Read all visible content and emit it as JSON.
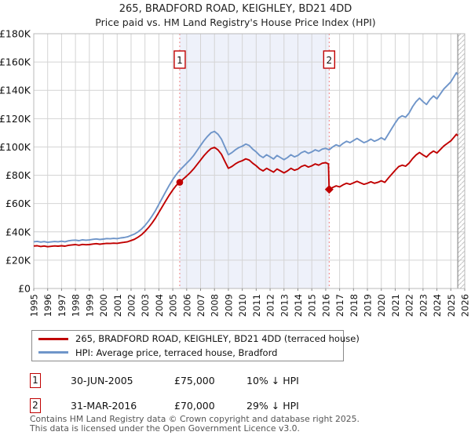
{
  "title": "265, BRADFORD ROAD, KEIGHLEY, BD21 4DD",
  "subtitle": "Price paid vs. HM Land Registry's House Price Index (HPI)",
  "colors": {
    "price_paid_line": "#c00000",
    "hpi_line": "#6f95c9",
    "between_sales_shade": "#eef1fa",
    "sale_vline": "#f08080",
    "grid": "#d4d4d4",
    "plot_border": "#b8b8b8",
    "hatch": "#c4c4c4",
    "now_line": "#909090",
    "marker_box_border": "#c00000",
    "footer_text": "#555555"
  },
  "chart_data": {
    "type": "line",
    "title": "265, BRADFORD ROAD, KEIGHLEY, BD21 4DD",
    "subtitle": "Price paid vs. HM Land Registry's House Price Index (HPI)",
    "xlabel": "",
    "ylabel": "",
    "xlim": [
      1995,
      2026
    ],
    "ylim": [
      0,
      180000
    ],
    "grid": true,
    "legend_position": "below",
    "y_ticks": [
      {
        "value": 0,
        "label": "£0"
      },
      {
        "value": 20,
        "label": "£20K"
      },
      {
        "value": 40,
        "label": "£40K"
      },
      {
        "value": 60,
        "label": "£60K"
      },
      {
        "value": 80,
        "label": "£80K"
      },
      {
        "value": 100,
        "label": "£100K"
      },
      {
        "value": 120,
        "label": "£120K"
      },
      {
        "value": 140,
        "label": "£140K"
      },
      {
        "value": 160,
        "label": "£160K"
      },
      {
        "value": 180,
        "label": "£180K"
      }
    ],
    "x_ticks": [
      1995,
      1996,
      1997,
      1998,
      1999,
      2000,
      2001,
      2002,
      2003,
      2004,
      2005,
      2006,
      2007,
      2008,
      2009,
      2010,
      2011,
      2012,
      2013,
      2014,
      2015,
      2016,
      2017,
      2018,
      2019,
      2020,
      2021,
      2022,
      2023,
      2024,
      2025,
      2026
    ],
    "shaded_region": {
      "from": 2005.5,
      "to": 2016.25
    },
    "future_hatch_region": {
      "from": 2025.5,
      "to": 2026
    },
    "series": [
      {
        "name": "265, BRADFORD ROAD, KEIGHLEY, BD21 4DD (terraced house)",
        "color": "#c00000",
        "unit": "GBP_thousand",
        "points": [
          [
            1995.0,
            30.0
          ],
          [
            1995.25,
            30.2
          ],
          [
            1995.5,
            29.7
          ],
          [
            1995.75,
            30.0
          ],
          [
            1996.0,
            29.5
          ],
          [
            1996.25,
            29.8
          ],
          [
            1996.5,
            30.1
          ],
          [
            1996.75,
            29.9
          ],
          [
            1997.0,
            30.2
          ],
          [
            1997.25,
            29.9
          ],
          [
            1997.5,
            30.5
          ],
          [
            1997.75,
            30.8
          ],
          [
            1998.0,
            31.0
          ],
          [
            1998.25,
            30.6
          ],
          [
            1998.5,
            31.1
          ],
          [
            1998.75,
            30.9
          ],
          [
            1999.0,
            31.0
          ],
          [
            1999.25,
            31.4
          ],
          [
            1999.5,
            31.7
          ],
          [
            1999.75,
            31.3
          ],
          [
            2000.0,
            31.6
          ],
          [
            2000.25,
            31.9
          ],
          [
            2000.5,
            31.8
          ],
          [
            2000.75,
            32.0
          ],
          [
            2001.0,
            31.9
          ],
          [
            2001.25,
            32.3
          ],
          [
            2001.5,
            32.6
          ],
          [
            2001.75,
            33.0
          ],
          [
            2002.0,
            33.9
          ],
          [
            2002.25,
            34.8
          ],
          [
            2002.5,
            36.2
          ],
          [
            2002.75,
            38.0
          ],
          [
            2003.0,
            40.3
          ],
          [
            2003.25,
            43.0
          ],
          [
            2003.5,
            46.1
          ],
          [
            2003.75,
            49.7
          ],
          [
            2004.0,
            53.8
          ],
          [
            2004.25,
            57.9
          ],
          [
            2004.5,
            62.0
          ],
          [
            2004.75,
            66.0
          ],
          [
            2005.0,
            69.6
          ],
          [
            2005.25,
            72.8
          ],
          [
            2005.5,
            75.0
          ],
          [
            2005.75,
            77.3
          ],
          [
            2006.0,
            79.5
          ],
          [
            2006.25,
            81.8
          ],
          [
            2006.5,
            84.5
          ],
          [
            2006.75,
            87.6
          ],
          [
            2007.0,
            90.7
          ],
          [
            2007.25,
            93.9
          ],
          [
            2007.5,
            96.6
          ],
          [
            2007.75,
            98.8
          ],
          [
            2008.0,
            99.7
          ],
          [
            2008.25,
            97.9
          ],
          [
            2008.5,
            94.8
          ],
          [
            2008.75,
            89.8
          ],
          [
            2009.0,
            84.9
          ],
          [
            2009.25,
            86.2
          ],
          [
            2009.5,
            88.0
          ],
          [
            2009.75,
            89.4
          ],
          [
            2010.0,
            90.3
          ],
          [
            2010.25,
            91.6
          ],
          [
            2010.5,
            90.7
          ],
          [
            2010.75,
            88.5
          ],
          [
            2011.0,
            86.7
          ],
          [
            2011.25,
            84.4
          ],
          [
            2011.5,
            83.1
          ],
          [
            2011.75,
            84.9
          ],
          [
            2012.0,
            83.5
          ],
          [
            2012.25,
            82.2
          ],
          [
            2012.5,
            84.4
          ],
          [
            2012.75,
            83.1
          ],
          [
            2013.0,
            81.7
          ],
          [
            2013.25,
            83.1
          ],
          [
            2013.5,
            84.9
          ],
          [
            2013.75,
            83.5
          ],
          [
            2014.0,
            84.4
          ],
          [
            2014.25,
            86.2
          ],
          [
            2014.5,
            87.1
          ],
          [
            2014.75,
            85.8
          ],
          [
            2015.0,
            86.7
          ],
          [
            2015.25,
            88.0
          ],
          [
            2015.5,
            87.1
          ],
          [
            2015.75,
            88.5
          ],
          [
            2016.0,
            88.9
          ],
          [
            2016.2,
            88.0
          ],
          [
            2016.25,
            70.0
          ],
          [
            2016.5,
            71.4
          ],
          [
            2016.75,
            72.5
          ],
          [
            2017.0,
            71.8
          ],
          [
            2017.25,
            73.2
          ],
          [
            2017.5,
            74.3
          ],
          [
            2017.75,
            73.6
          ],
          [
            2018.0,
            74.6
          ],
          [
            2018.25,
            75.7
          ],
          [
            2018.5,
            74.6
          ],
          [
            2018.75,
            73.6
          ],
          [
            2019.0,
            74.3
          ],
          [
            2019.25,
            75.4
          ],
          [
            2019.5,
            74.3
          ],
          [
            2019.75,
            75.0
          ],
          [
            2020.0,
            76.1
          ],
          [
            2020.25,
            75.0
          ],
          [
            2020.5,
            77.9
          ],
          [
            2020.75,
            80.7
          ],
          [
            2021.0,
            83.6
          ],
          [
            2021.25,
            86.1
          ],
          [
            2021.5,
            87.1
          ],
          [
            2021.75,
            86.4
          ],
          [
            2022.0,
            88.6
          ],
          [
            2022.25,
            91.8
          ],
          [
            2022.5,
            94.3
          ],
          [
            2022.75,
            96.1
          ],
          [
            2023.0,
            94.3
          ],
          [
            2023.25,
            92.9
          ],
          [
            2023.5,
            95.4
          ],
          [
            2023.75,
            97.1
          ],
          [
            2024.0,
            95.7
          ],
          [
            2024.25,
            98.2
          ],
          [
            2024.5,
            100.7
          ],
          [
            2024.75,
            102.5
          ],
          [
            2025.0,
            104.3
          ],
          [
            2025.25,
            107.1
          ],
          [
            2025.4,
            109.0
          ],
          [
            2025.5,
            107.9
          ]
        ]
      },
      {
        "name": "HPI: Average price, terraced house, Bradford",
        "color": "#6f95c9",
        "unit": "GBP_thousand",
        "points": [
          [
            1995.0,
            33.0
          ],
          [
            1995.25,
            33.3
          ],
          [
            1995.5,
            32.8
          ],
          [
            1995.75,
            33.1
          ],
          [
            1996.0,
            32.6
          ],
          [
            1996.25,
            32.9
          ],
          [
            1996.5,
            33.2
          ],
          [
            1996.75,
            33.0
          ],
          [
            1997.0,
            33.4
          ],
          [
            1997.25,
            33.0
          ],
          [
            1997.5,
            33.7
          ],
          [
            1997.75,
            34.0
          ],
          [
            1998.0,
            34.2
          ],
          [
            1998.25,
            33.8
          ],
          [
            1998.5,
            34.4
          ],
          [
            1998.75,
            34.1
          ],
          [
            1999.0,
            34.3
          ],
          [
            1999.25,
            34.7
          ],
          [
            1999.5,
            35.0
          ],
          [
            1999.75,
            34.6
          ],
          [
            2000.0,
            34.9
          ],
          [
            2000.25,
            35.3
          ],
          [
            2000.5,
            35.1
          ],
          [
            2000.75,
            35.4
          ],
          [
            2001.0,
            35.2
          ],
          [
            2001.25,
            35.7
          ],
          [
            2001.5,
            36.0
          ],
          [
            2001.75,
            36.5
          ],
          [
            2002.0,
            37.5
          ],
          [
            2002.25,
            38.5
          ],
          [
            2002.5,
            40.0
          ],
          [
            2002.75,
            42.0
          ],
          [
            2003.0,
            44.5
          ],
          [
            2003.25,
            47.5
          ],
          [
            2003.5,
            51.0
          ],
          [
            2003.75,
            55.0
          ],
          [
            2004.0,
            59.5
          ],
          [
            2004.25,
            64.0
          ],
          [
            2004.5,
            68.5
          ],
          [
            2004.75,
            73.0
          ],
          [
            2005.0,
            77.0
          ],
          [
            2005.25,
            80.5
          ],
          [
            2005.5,
            83.5
          ],
          [
            2005.75,
            86.0
          ],
          [
            2006.0,
            88.5
          ],
          [
            2006.25,
            91.0
          ],
          [
            2006.5,
            94.0
          ],
          [
            2006.75,
            97.5
          ],
          [
            2007.0,
            101.0
          ],
          [
            2007.25,
            104.5
          ],
          [
            2007.5,
            107.5
          ],
          [
            2007.75,
            110.0
          ],
          [
            2008.0,
            111.0
          ],
          [
            2008.25,
            109.0
          ],
          [
            2008.5,
            105.5
          ],
          [
            2008.75,
            100.0
          ],
          [
            2009.0,
            94.5
          ],
          [
            2009.25,
            96.0
          ],
          [
            2009.5,
            98.0
          ],
          [
            2009.75,
            99.5
          ],
          [
            2010.0,
            100.5
          ],
          [
            2010.25,
            102.0
          ],
          [
            2010.5,
            101.0
          ],
          [
            2010.75,
            98.5
          ],
          [
            2011.0,
            96.5
          ],
          [
            2011.25,
            94.0
          ],
          [
            2011.5,
            92.5
          ],
          [
            2011.75,
            94.5
          ],
          [
            2012.0,
            93.0
          ],
          [
            2012.25,
            91.5
          ],
          [
            2012.5,
            94.0
          ],
          [
            2012.75,
            92.5
          ],
          [
            2013.0,
            91.0
          ],
          [
            2013.25,
            92.5
          ],
          [
            2013.5,
            94.5
          ],
          [
            2013.75,
            93.0
          ],
          [
            2014.0,
            94.0
          ],
          [
            2014.25,
            96.0
          ],
          [
            2014.5,
            97.0
          ],
          [
            2014.75,
            95.5
          ],
          [
            2015.0,
            96.5
          ],
          [
            2015.25,
            98.0
          ],
          [
            2015.5,
            97.0
          ],
          [
            2015.75,
            98.5
          ],
          [
            2016.0,
            99.0
          ],
          [
            2016.25,
            98.0
          ],
          [
            2016.5,
            100.0
          ],
          [
            2016.75,
            101.5
          ],
          [
            2017.0,
            100.5
          ],
          [
            2017.25,
            102.5
          ],
          [
            2017.5,
            104.0
          ],
          [
            2017.75,
            103.0
          ],
          [
            2018.0,
            104.5
          ],
          [
            2018.25,
            106.0
          ],
          [
            2018.5,
            104.5
          ],
          [
            2018.75,
            103.0
          ],
          [
            2019.0,
            104.0
          ],
          [
            2019.25,
            105.5
          ],
          [
            2019.5,
            104.0
          ],
          [
            2019.75,
            105.0
          ],
          [
            2020.0,
            106.5
          ],
          [
            2020.25,
            105.0
          ],
          [
            2020.5,
            109.0
          ],
          [
            2020.75,
            113.0
          ],
          [
            2021.0,
            117.0
          ],
          [
            2021.25,
            120.5
          ],
          [
            2021.5,
            122.0
          ],
          [
            2021.75,
            121.0
          ],
          [
            2022.0,
            124.0
          ],
          [
            2022.25,
            128.5
          ],
          [
            2022.5,
            132.0
          ],
          [
            2022.75,
            134.5
          ],
          [
            2023.0,
            132.0
          ],
          [
            2023.25,
            130.0
          ],
          [
            2023.5,
            133.5
          ],
          [
            2023.75,
            136.0
          ],
          [
            2024.0,
            134.0
          ],
          [
            2024.25,
            137.5
          ],
          [
            2024.5,
            141.0
          ],
          [
            2024.75,
            143.5
          ],
          [
            2025.0,
            146.0
          ],
          [
            2025.25,
            150.0
          ],
          [
            2025.4,
            152.5
          ],
          [
            2025.5,
            151.0
          ]
        ]
      }
    ],
    "annotations": [
      {
        "label": "1",
        "x": 2005.5,
        "value": 75.0,
        "marker": "circle"
      },
      {
        "label": "2",
        "x": 2016.25,
        "value": 70.0,
        "marker": "diamond"
      }
    ]
  },
  "legend": {
    "items": [
      {
        "label": "265, BRADFORD ROAD, KEIGHLEY, BD21 4DD (terraced house)",
        "color": "#c00000"
      },
      {
        "label": "HPI: Average price, terraced house, Bradford",
        "color": "#6f95c9"
      }
    ]
  },
  "transactions": [
    {
      "num": "1",
      "date": "30-JUN-2005",
      "price": "£75,000",
      "hpi_diff": "10% ↓ HPI"
    },
    {
      "num": "2",
      "date": "31-MAR-2016",
      "price": "£70,000",
      "hpi_diff": "29% ↓ HPI"
    }
  ],
  "footer": {
    "line1": "Contains HM Land Registry data © Crown copyright and database right 2025.",
    "line2": "This data is licensed under the Open Government Licence v3.0."
  }
}
